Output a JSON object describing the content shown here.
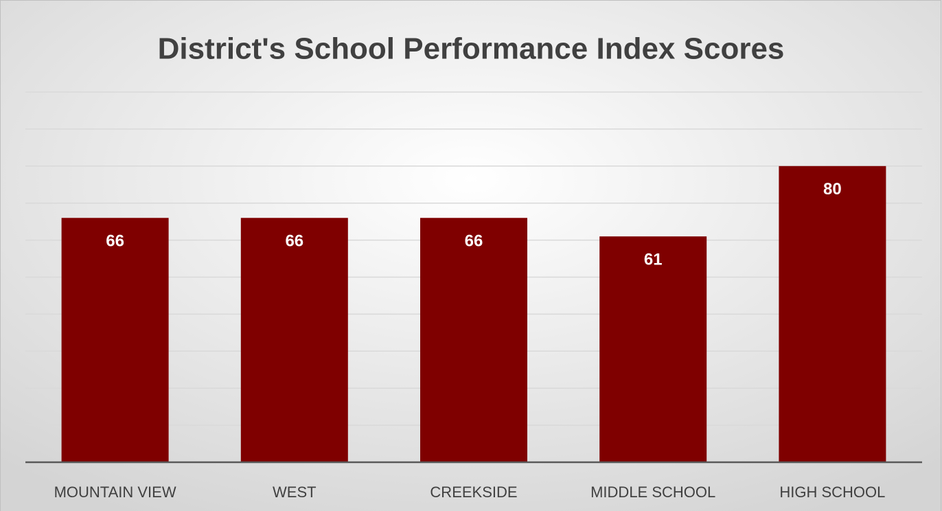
{
  "chart_data": {
    "type": "bar",
    "title": "District's School Performance Index Scores",
    "categories": [
      "MOUNTAIN VIEW",
      "WEST",
      "CREEKSIDE",
      "MIDDLE SCHOOL",
      "HIGH SCHOOL"
    ],
    "values": [
      66,
      66,
      66,
      61,
      80
    ],
    "color": "#7f0000",
    "ylim": [
      0,
      100
    ],
    "yticks": [
      0,
      10,
      20,
      30,
      40,
      50,
      60,
      70,
      80,
      90,
      100
    ],
    "grid": true
  }
}
